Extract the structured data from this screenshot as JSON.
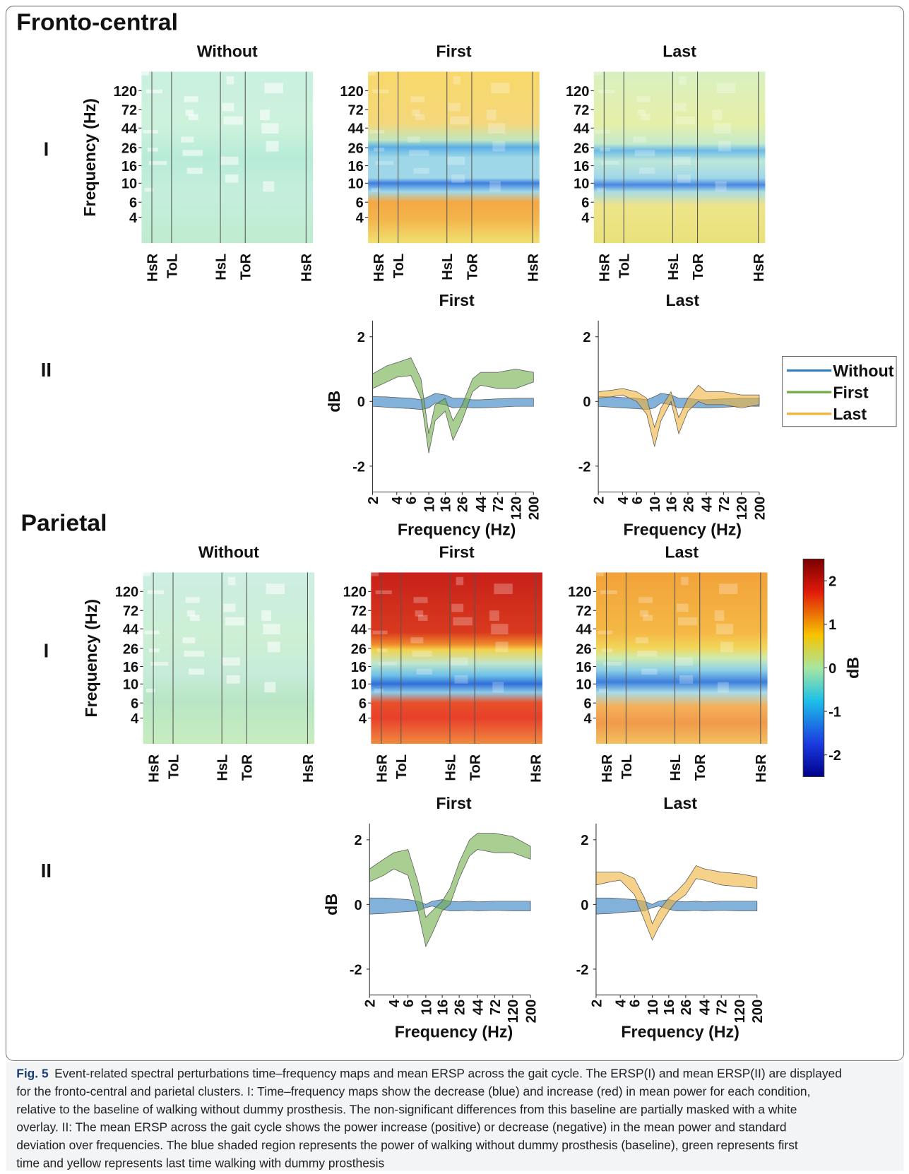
{
  "sections": [
    {
      "title": "Fronto-central",
      "row_i_label": "I",
      "row_ii_label": "II",
      "maps": [
        {
          "title": "Without",
          "ylabel": "Frequency (Hz)",
          "ylim": [
            2,
            200
          ],
          "log": true,
          "yticks": [
            120,
            72,
            44,
            26,
            16,
            10,
            6,
            4
          ],
          "events": [
            "HsR",
            "ToL",
            "HsL",
            "ToR",
            "HsR"
          ]
        },
        {
          "title": "First",
          "ylim": [
            2,
            200
          ],
          "log": true,
          "yticks": [
            120,
            72,
            44,
            26,
            16,
            10,
            6,
            4
          ],
          "events": [
            "HsR",
            "ToL",
            "HsL",
            "ToR",
            "HsR"
          ]
        },
        {
          "title": "Last",
          "ylim": [
            2,
            200
          ],
          "log": true,
          "yticks": [
            120,
            72,
            44,
            26,
            16,
            10,
            6,
            4
          ],
          "events": [
            "HsR",
            "ToL",
            "HsL",
            "ToR",
            "HsR"
          ]
        }
      ],
      "ersp": [
        {
          "title": "First",
          "ylabel": "dB",
          "xlabel": "Frequency (Hz)",
          "xlim": [
            2,
            200
          ],
          "log": true,
          "ylim": [
            -2.8,
            2.5
          ],
          "yticks": [
            2,
            0,
            -2
          ],
          "xticks": [
            2,
            4,
            6,
            10,
            16,
            26,
            44,
            72,
            120,
            200
          ],
          "x": [
            2,
            3,
            4,
            6,
            8,
            10,
            12,
            16,
            20,
            26,
            35,
            44,
            72,
            120,
            200
          ],
          "bands": [
            {
              "name": "Without",
              "lo": [
                -0.15,
                -0.18,
                -0.2,
                -0.22,
                -0.25,
                -0.2,
                -0.05,
                -0.1,
                -0.2,
                -0.18,
                -0.2,
                -0.2,
                -0.18,
                -0.15,
                -0.15
              ],
              "hi": [
                0.15,
                0.14,
                0.12,
                0.1,
                0.05,
                0.15,
                0.25,
                0.2,
                0.1,
                0.1,
                0.05,
                0.05,
                0.08,
                0.1,
                0.1
              ]
            },
            {
              "name": "First",
              "lo": [
                0.4,
                0.6,
                0.75,
                0.8,
                0.1,
                -1.6,
                -0.6,
                -0.3,
                -1.2,
                -0.6,
                0.3,
                0.5,
                0.4,
                0.4,
                0.6
              ],
              "hi": [
                0.85,
                1.1,
                1.2,
                1.35,
                0.7,
                -1.0,
                -0.1,
                0.1,
                -0.6,
                -0.1,
                0.7,
                0.9,
                0.9,
                1.0,
                0.9
              ]
            }
          ]
        },
        {
          "title": "Last",
          "xlabel": "Frequency (Hz)",
          "xlim": [
            2,
            200
          ],
          "log": true,
          "ylim": [
            -2.8,
            2.5
          ],
          "yticks": [
            2,
            0,
            -2
          ],
          "xticks": [
            2,
            4,
            6,
            10,
            16,
            26,
            44,
            72,
            120,
            200
          ],
          "x": [
            2,
            3,
            4,
            6,
            8,
            10,
            12,
            16,
            20,
            26,
            35,
            44,
            72,
            120,
            200
          ],
          "bands": [
            {
              "name": "Without",
              "lo": [
                -0.15,
                -0.18,
                -0.2,
                -0.22,
                -0.25,
                -0.2,
                -0.05,
                -0.1,
                -0.2,
                -0.18,
                -0.2,
                -0.2,
                -0.18,
                -0.15,
                -0.15
              ],
              "hi": [
                0.15,
                0.14,
                0.12,
                0.1,
                0.05,
                0.15,
                0.25,
                0.2,
                0.1,
                0.1,
                0.05,
                0.05,
                0.08,
                0.1,
                0.1
              ]
            },
            {
              "name": "Last",
              "lo": [
                0.1,
                0.15,
                0.2,
                0.0,
                -0.4,
                -1.4,
                -0.6,
                0.0,
                -1.0,
                -0.3,
                0.0,
                -0.1,
                -0.1,
                -0.2,
                -0.1
              ],
              "hi": [
                0.3,
                0.35,
                0.4,
                0.3,
                0.1,
                -0.8,
                -0.2,
                0.3,
                -0.5,
                0.1,
                0.5,
                0.3,
                0.3,
                0.2,
                0.2
              ]
            }
          ]
        }
      ]
    },
    {
      "title": "Parietal",
      "row_i_label": "I",
      "row_ii_label": "II",
      "maps": [
        {
          "title": "Without",
          "ylabel": "Frequency (Hz)",
          "ylim": [
            2,
            200
          ],
          "log": true,
          "yticks": [
            120,
            72,
            44,
            26,
            16,
            10,
            6,
            4
          ],
          "events": [
            "HsR",
            "ToL",
            "HsL",
            "ToR",
            "HsR"
          ]
        },
        {
          "title": "First",
          "ylim": [
            2,
            200
          ],
          "log": true,
          "yticks": [
            120,
            72,
            44,
            26,
            16,
            10,
            6,
            4
          ],
          "events": [
            "HsR",
            "ToL",
            "HsL",
            "ToR",
            "HsR"
          ]
        },
        {
          "title": "Last",
          "ylim": [
            2,
            200
          ],
          "log": true,
          "yticks": [
            120,
            72,
            44,
            26,
            16,
            10,
            6,
            4
          ],
          "events": [
            "HsR",
            "ToL",
            "HsL",
            "ToR",
            "HsR"
          ]
        }
      ],
      "ersp": [
        {
          "title": "First",
          "ylabel": "dB",
          "xlabel": "Frequency (Hz)",
          "xlim": [
            2,
            200
          ],
          "log": true,
          "ylim": [
            -2.8,
            2.5
          ],
          "yticks": [
            2,
            0,
            -2
          ],
          "xticks": [
            2,
            4,
            6,
            10,
            16,
            26,
            44,
            72,
            120,
            200
          ],
          "x": [
            2,
            3,
            4,
            6,
            8,
            10,
            12,
            16,
            20,
            26,
            35,
            44,
            72,
            120,
            200
          ],
          "bands": [
            {
              "name": "Without",
              "lo": [
                -0.3,
                -0.28,
                -0.25,
                -0.22,
                -0.2,
                -0.1,
                -0.05,
                -0.15,
                -0.2,
                -0.2,
                -0.18,
                -0.2,
                -0.18,
                -0.2,
                -0.2
              ],
              "hi": [
                0.2,
                0.2,
                0.18,
                0.15,
                0.1,
                0.0,
                0.1,
                0.15,
                0.1,
                0.08,
                0.1,
                0.08,
                0.1,
                0.1,
                0.1
              ]
            },
            {
              "name": "First",
              "lo": [
                0.7,
                0.9,
                1.1,
                0.9,
                -0.2,
                -1.3,
                -0.9,
                -0.2,
                0.0,
                0.8,
                1.5,
                1.7,
                1.6,
                1.6,
                1.4
              ],
              "hi": [
                1.1,
                1.4,
                1.6,
                1.7,
                0.7,
                -0.4,
                -0.2,
                0.1,
                0.5,
                1.3,
                2.0,
                2.2,
                2.2,
                2.1,
                1.8
              ]
            }
          ]
        },
        {
          "title": "Last",
          "xlabel": "Frequency (Hz)",
          "xlim": [
            2,
            200
          ],
          "log": true,
          "ylim": [
            -2.8,
            2.5
          ],
          "yticks": [
            2,
            0,
            -2
          ],
          "xticks": [
            2,
            4,
            6,
            10,
            16,
            26,
            44,
            72,
            120,
            200
          ],
          "x": [
            2,
            3,
            4,
            6,
            8,
            10,
            12,
            16,
            20,
            26,
            35,
            44,
            72,
            120,
            200
          ],
          "bands": [
            {
              "name": "Without",
              "lo": [
                -0.3,
                -0.28,
                -0.25,
                -0.22,
                -0.2,
                -0.1,
                -0.05,
                -0.15,
                -0.2,
                -0.2,
                -0.18,
                -0.2,
                -0.18,
                -0.2,
                -0.2
              ],
              "hi": [
                0.2,
                0.2,
                0.18,
                0.15,
                0.1,
                0.0,
                0.1,
                0.15,
                0.1,
                0.08,
                0.1,
                0.08,
                0.1,
                0.1,
                0.1
              ]
            },
            {
              "name": "Last",
              "lo": [
                0.6,
                0.7,
                0.75,
                0.3,
                -0.5,
                -1.1,
                -0.7,
                -0.2,
                0.1,
                0.3,
                0.8,
                0.75,
                0.6,
                0.55,
                0.5
              ],
              "hi": [
                1.0,
                1.0,
                1.0,
                0.8,
                0.2,
                -0.6,
                -0.2,
                0.2,
                0.4,
                0.7,
                1.2,
                1.1,
                1.0,
                0.95,
                0.85
              ]
            }
          ]
        }
      ]
    }
  ],
  "legend": [
    {
      "name": "Without",
      "color": "#2f7fc1"
    },
    {
      "name": "First",
      "color": "#70ad47"
    },
    {
      "name": "Last",
      "color": "#f0b23c"
    }
  ],
  "colorbar": {
    "label": "dB",
    "lim": [
      -2.5,
      2.5
    ],
    "ticks": [
      2,
      1,
      0,
      -1,
      -2
    ]
  },
  "caption": {
    "label": "Fig. 5",
    "lines": [
      "Event-related spectral perturbations time–frequency maps and mean ERSP across the gait cycle. The ERSP(I) and mean ERSP(II) are displayed",
      "for the fronto-central and parietal clusters. I: Time–frequency maps show the decrease (blue) and increase (red) in mean power for each condition,",
      "relative to the baseline of walking without dummy prosthesis. The non-significant differences from this baseline are partially masked with a white",
      "overlay. II: The mean ERSP across the gait cycle shows the power increase (positive) or decrease (negative) in the mean power and standard",
      "deviation over frequencies. The blue shaded region represents the power of walking without dummy prosthesis (baseline), green represents first",
      "time and yellow represents last time walking with dummy prosthesis"
    ]
  }
}
